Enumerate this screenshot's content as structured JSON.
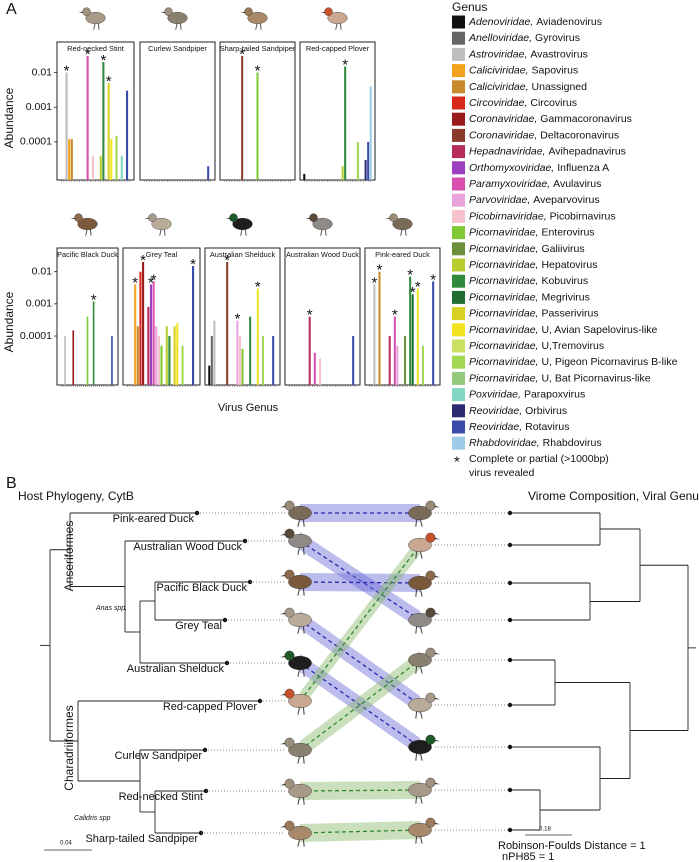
{
  "panel_a": {
    "label": "A",
    "y_label": "Abundance",
    "x_label": "Virus Genus",
    "asterisk": "*",
    "legend": {
      "title": "Genus",
      "entries": [
        {
          "family": "Adenoviridae,",
          "genus": "Aviadenovirus",
          "color": "#111111"
        },
        {
          "family": "Anelloviridae,",
          "genus": "Gyrovirus",
          "color": "#666666"
        },
        {
          "family": "Astroviridae,",
          "genus": "Avastrovirus",
          "color": "#bdbdbd"
        },
        {
          "family": "Caliciviridae,",
          "genus": "Sapovirus",
          "color": "#f2a21c"
        },
        {
          "family": "Caliciviridae,",
          "genus": "Unassigned",
          "color": "#c98a2c"
        },
        {
          "family": "Circoviridae,",
          "genus": "Circovirus",
          "color": "#d8281c"
        },
        {
          "family": "Coronaviridae,",
          "genus": "Gammacoronavirus",
          "color": "#9b1b1b"
        },
        {
          "family": "Coronaviridae,",
          "genus": "Deltacoronavirus",
          "color": "#8c3b2b"
        },
        {
          "family": "Hepadnaviridae,",
          "genus": "Avihepadnavirus",
          "color": "#b52b5c"
        },
        {
          "family": "Orthomyxoviridae,",
          "genus": "Influenza A",
          "color": "#9a40c0"
        },
        {
          "family": "Paramyxoviridae,",
          "genus": "Avulavirus",
          "color": "#d850b2"
        },
        {
          "family": "Parvoviridae,",
          "genus": "Aveparvovirus",
          "color": "#eaa2da"
        },
        {
          "family": "Picobirnaviridae,",
          "genus": "Picobirnavirus",
          "color": "#f6c2cc"
        },
        {
          "family": "Picornaviridae,",
          "genus": "Enterovirus",
          "color": "#7fc934"
        },
        {
          "family": "Picornaviridae,",
          "genus": "Galiivirus",
          "color": "#6b8f3b"
        },
        {
          "family": "Picornaviridae,",
          "genus": "Hepatovirus",
          "color": "#b9cd30"
        },
        {
          "family": "Picornaviridae,",
          "genus": "Kobuvirus",
          "color": "#2f8b3b"
        },
        {
          "family": "Picornaviridae,",
          "genus": "Megrivirus",
          "color": "#1f6d31"
        },
        {
          "family": "Picornaviridae,",
          "genus": "Passerivirus",
          "color": "#d8d022"
        },
        {
          "family": "Picornaviridae,",
          "genus": "U, Avian Sapelovirus-like",
          "color": "#f1e31f"
        },
        {
          "family": "Picornaviridae,",
          "genus": "U,Tremovirus",
          "color": "#c9e062"
        },
        {
          "family": "Picornaviridae,",
          "genus": "U, Pigeon Picornavirus B-like",
          "color": "#a2d852"
        },
        {
          "family": "Picornaviridae,",
          "genus": "U, Bat Picornavirus-like",
          "color": "#92c97a"
        },
        {
          "family": "Poxviridae,",
          "genus": "Parapoxvirus",
          "color": "#82d8c2"
        },
        {
          "family": "Reoviridae,",
          "genus": "Orbivirus",
          "color": "#2a2a72"
        },
        {
          "family": "Reoviridae,",
          "genus": "Rotavirus",
          "color": "#3b4ba9"
        },
        {
          "family": "Rhabdoviridae,",
          "genus": "Rhabdovirus",
          "color": "#9dcbe8"
        }
      ],
      "note": [
        "Complete or partial (>1000bp)",
        "virus revealed"
      ]
    }
  },
  "chart_data": [
    {
      "type": "bar",
      "title": "Red-necked Stint",
      "log": true,
      "ylim": [
        8e-06,
        0.03
      ],
      "yticks": [
        0.01,
        0.001,
        0.0001
      ],
      "values": [
        null,
        null,
        0.01,
        0.00012,
        0.00012,
        null,
        null,
        null,
        null,
        null,
        0.03,
        null,
        4e-05,
        null,
        null,
        4e-05,
        0.02,
        null,
        0.005,
        0.00012,
        null,
        0.00015,
        null,
        4e-05,
        null,
        0.003,
        null
      ],
      "complete": [
        2,
        10,
        16,
        18
      ]
    },
    {
      "type": "bar",
      "title": "Curlew Sandpiper",
      "log": true,
      "ylim": [
        8e-06,
        0.03
      ],
      "yticks": [
        0.01,
        0.001,
        0.0001
      ],
      "values": [
        null,
        null,
        null,
        null,
        null,
        null,
        null,
        null,
        null,
        null,
        null,
        null,
        null,
        null,
        null,
        null,
        null,
        null,
        null,
        null,
        null,
        null,
        null,
        null,
        null,
        2e-05,
        null
      ],
      "complete": []
    },
    {
      "type": "bar",
      "title": "Sharp-tailed Sandpiper",
      "log": true,
      "ylim": [
        8e-06,
        0.03
      ],
      "yticks": [
        0.01,
        0.001,
        0.0001
      ],
      "values": [
        null,
        null,
        null,
        null,
        null,
        null,
        null,
        0.03,
        null,
        null,
        null,
        null,
        null,
        0.01,
        null,
        null,
        null,
        null,
        null,
        null,
        null,
        null,
        null,
        null,
        null,
        null,
        null
      ],
      "complete": [
        7,
        13
      ]
    },
    {
      "type": "bar",
      "title": "Red-capped Plover",
      "log": true,
      "ylim": [
        8e-06,
        0.03
      ],
      "yticks": [
        0.01,
        0.001,
        0.0001
      ],
      "values": [
        1.2e-05,
        null,
        null,
        null,
        null,
        null,
        null,
        null,
        null,
        null,
        null,
        null,
        null,
        null,
        null,
        2e-05,
        0.015,
        null,
        null,
        null,
        null,
        0.0001,
        null,
        null,
        3e-05,
        0.0001,
        0.004
      ],
      "complete": [
        16
      ]
    },
    {
      "type": "bar",
      "title": "Pacific Black Duck",
      "log": true,
      "ylim": [
        3e-06,
        0.02
      ],
      "yticks": [
        0.01,
        0.001,
        0.0001
      ],
      "values": [
        null,
        null,
        0.0001,
        null,
        null,
        null,
        0.00015,
        null,
        null,
        null,
        null,
        null,
        null,
        0.0004,
        null,
        null,
        0.0012,
        null,
        null,
        null,
        null,
        null,
        null,
        null,
        null,
        0.0001,
        null
      ],
      "complete": [
        16
      ]
    },
    {
      "type": "bar",
      "title": "Grey Teal",
      "log": true,
      "ylim": [
        3e-06,
        0.02
      ],
      "yticks": [
        0.01,
        0.001,
        0.0001
      ],
      "values": [
        null,
        null,
        null,
        0.004,
        0.0002,
        0.01,
        0.02,
        null,
        0.0008,
        0.004,
        0.005,
        0.0002,
        0.0001,
        5e-05,
        null,
        0.0002,
        0.0001,
        null,
        0.0002,
        0.00025,
        null,
        5e-05,
        null,
        null,
        null,
        0.015,
        null
      ],
      "complete": [
        3,
        6,
        9,
        10,
        25
      ]
    },
    {
      "type": "bar",
      "title": "Australian Shelduck",
      "log": true,
      "ylim": [
        3e-06,
        0.02
      ],
      "yticks": [
        0.01,
        0.001,
        0.0001
      ],
      "values": [
        1.2e-05,
        0.0001,
        0.0003,
        null,
        null,
        null,
        null,
        0.02,
        null,
        null,
        null,
        0.0003,
        0.0001,
        4e-05,
        null,
        null,
        0.0004,
        null,
        null,
        0.003,
        null,
        0.0001,
        null,
        null,
        null,
        0.0001,
        null
      ],
      "complete": [
        7,
        11,
        19
      ]
    },
    {
      "type": "bar",
      "title": "Australian Wood Duck",
      "log": true,
      "ylim": [
        3e-06,
        0.02
      ],
      "yticks": [
        0.01,
        0.001,
        0.0001
      ],
      "values": [
        null,
        null,
        null,
        null,
        null,
        null,
        null,
        null,
        0.0004,
        null,
        3e-05,
        null,
        2e-05,
        null,
        null,
        null,
        null,
        null,
        null,
        null,
        null,
        null,
        null,
        null,
        null,
        0.0001,
        null
      ],
      "complete": [
        8
      ]
    },
    {
      "type": "bar",
      "title": "Pink-eared Duck",
      "log": true,
      "ylim": [
        3e-06,
        0.02
      ],
      "yticks": [
        0.01,
        0.001,
        0.0001
      ],
      "values": [
        null,
        null,
        0.004,
        null,
        0.01,
        null,
        null,
        null,
        0.0001,
        null,
        0.0004,
        5e-05,
        null,
        null,
        0.0001,
        null,
        0.007,
        0.002,
        null,
        0.003,
        null,
        5e-05,
        null,
        null,
        null,
        0.005,
        null
      ],
      "complete": [
        2,
        4,
        10,
        16,
        17,
        19,
        25
      ]
    }
  ],
  "panel_b": {
    "label": "B",
    "left_title": "Host Phylogeny, CytB",
    "right_title": "Virome Composition, Viral Genus",
    "hosts": [
      "Pink-eared Duck",
      "Australian Wood Duck",
      "Pacific Black Duck",
      "Grey Teal",
      "Australian Shelduck",
      "Red-capped Plover",
      "Curlew Sandpiper",
      "Red-necked Stint",
      "Sharp-tailed Sandpiper"
    ],
    "orders": [
      "Anseriformes",
      "Charadriiformes"
    ],
    "genera": [
      "Anas spp.",
      "Calidris spp"
    ],
    "scale_left": "0.04",
    "scale_right": "0.18",
    "stats": [
      "Robinson-Foulds Distance = 1",
      "nPH85 = 1"
    ]
  }
}
